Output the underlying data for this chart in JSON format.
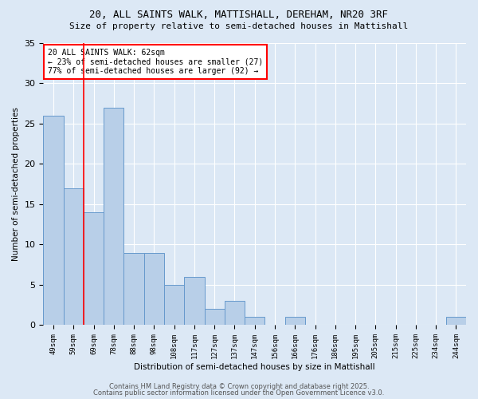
{
  "title": "20, ALL SAINTS WALK, MATTISHALL, DEREHAM, NR20 3RF",
  "subtitle": "Size of property relative to semi-detached houses in Mattishall",
  "xlabel": "Distribution of semi-detached houses by size in Mattishall",
  "ylabel": "Number of semi-detached properties",
  "bar_color": "#b8cfe8",
  "bar_edge_color": "#6699cc",
  "background_color": "#dce8f5",
  "fig_background": "#dce8f5",
  "grid_color": "#ffffff",
  "categories": [
    "49sqm",
    "59sqm",
    "69sqm",
    "78sqm",
    "88sqm",
    "98sqm",
    "108sqm",
    "117sqm",
    "127sqm",
    "137sqm",
    "147sqm",
    "156sqm",
    "166sqm",
    "176sqm",
    "186sqm",
    "195sqm",
    "205sqm",
    "215sqm",
    "225sqm",
    "234sqm",
    "244sqm"
  ],
  "values": [
    26,
    17,
    14,
    27,
    9,
    9,
    5,
    6,
    2,
    3,
    1,
    0,
    1,
    0,
    0,
    0,
    0,
    0,
    0,
    0,
    1
  ],
  "property_label": "20 ALL SAINTS WALK: 62sqm",
  "pct_smaller": 23,
  "pct_larger": 77,
  "count_smaller": 27,
  "count_larger": 92,
  "red_line_index": 1.5,
  "ylim": [
    0,
    35
  ],
  "yticks": [
    0,
    5,
    10,
    15,
    20,
    25,
    30,
    35
  ],
  "title_fontsize": 9,
  "subtitle_fontsize": 8,
  "footer1": "Contains HM Land Registry data © Crown copyright and database right 2025.",
  "footer2": "Contains public sector information licensed under the Open Government Licence v3.0."
}
